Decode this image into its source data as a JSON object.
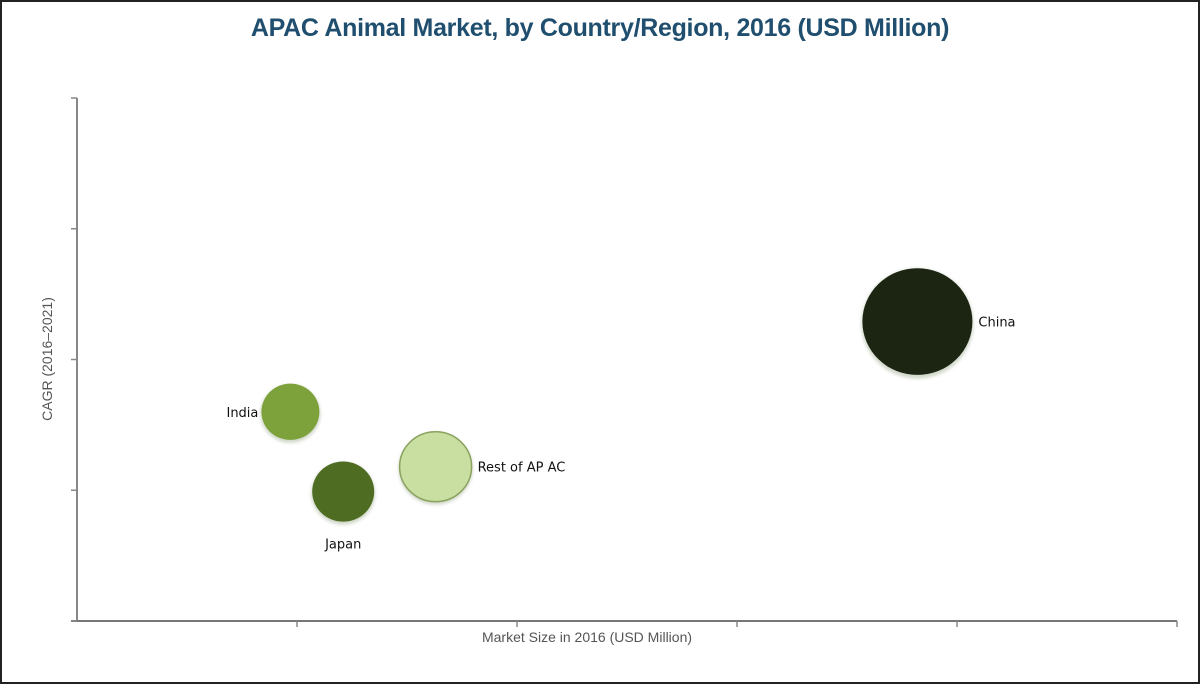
{
  "chart_data": {
    "type": "bubble",
    "title": "APAC Animal Market, by Country/Region,  2016 (USD Million)",
    "xlabel": "Market Size in 2016 (USD Million)",
    "ylabel": "CAGR (2016–2021)",
    "x_tick_labels": "none shown",
    "y_tick_labels": "none shown",
    "xlim": [
      0,
      5
    ],
    "ylim": [
      0,
      4
    ],
    "grid": false,
    "legend": "none",
    "series": [
      {
        "name": "India",
        "x": 0.97,
        "y": 1.6,
        "size": 29,
        "color": "#7da23c"
      },
      {
        "name": "Japan",
        "x": 1.21,
        "y": 0.99,
        "size": 31,
        "color": "#4e6c22"
      },
      {
        "name": "Rest of AP AC",
        "x": 1.63,
        "y": 1.18,
        "size": 36,
        "color": "#c9dfa2"
      },
      {
        "name": "China",
        "x": 3.82,
        "y": 2.29,
        "size": 55,
        "color": "#1b2512"
      }
    ]
  }
}
